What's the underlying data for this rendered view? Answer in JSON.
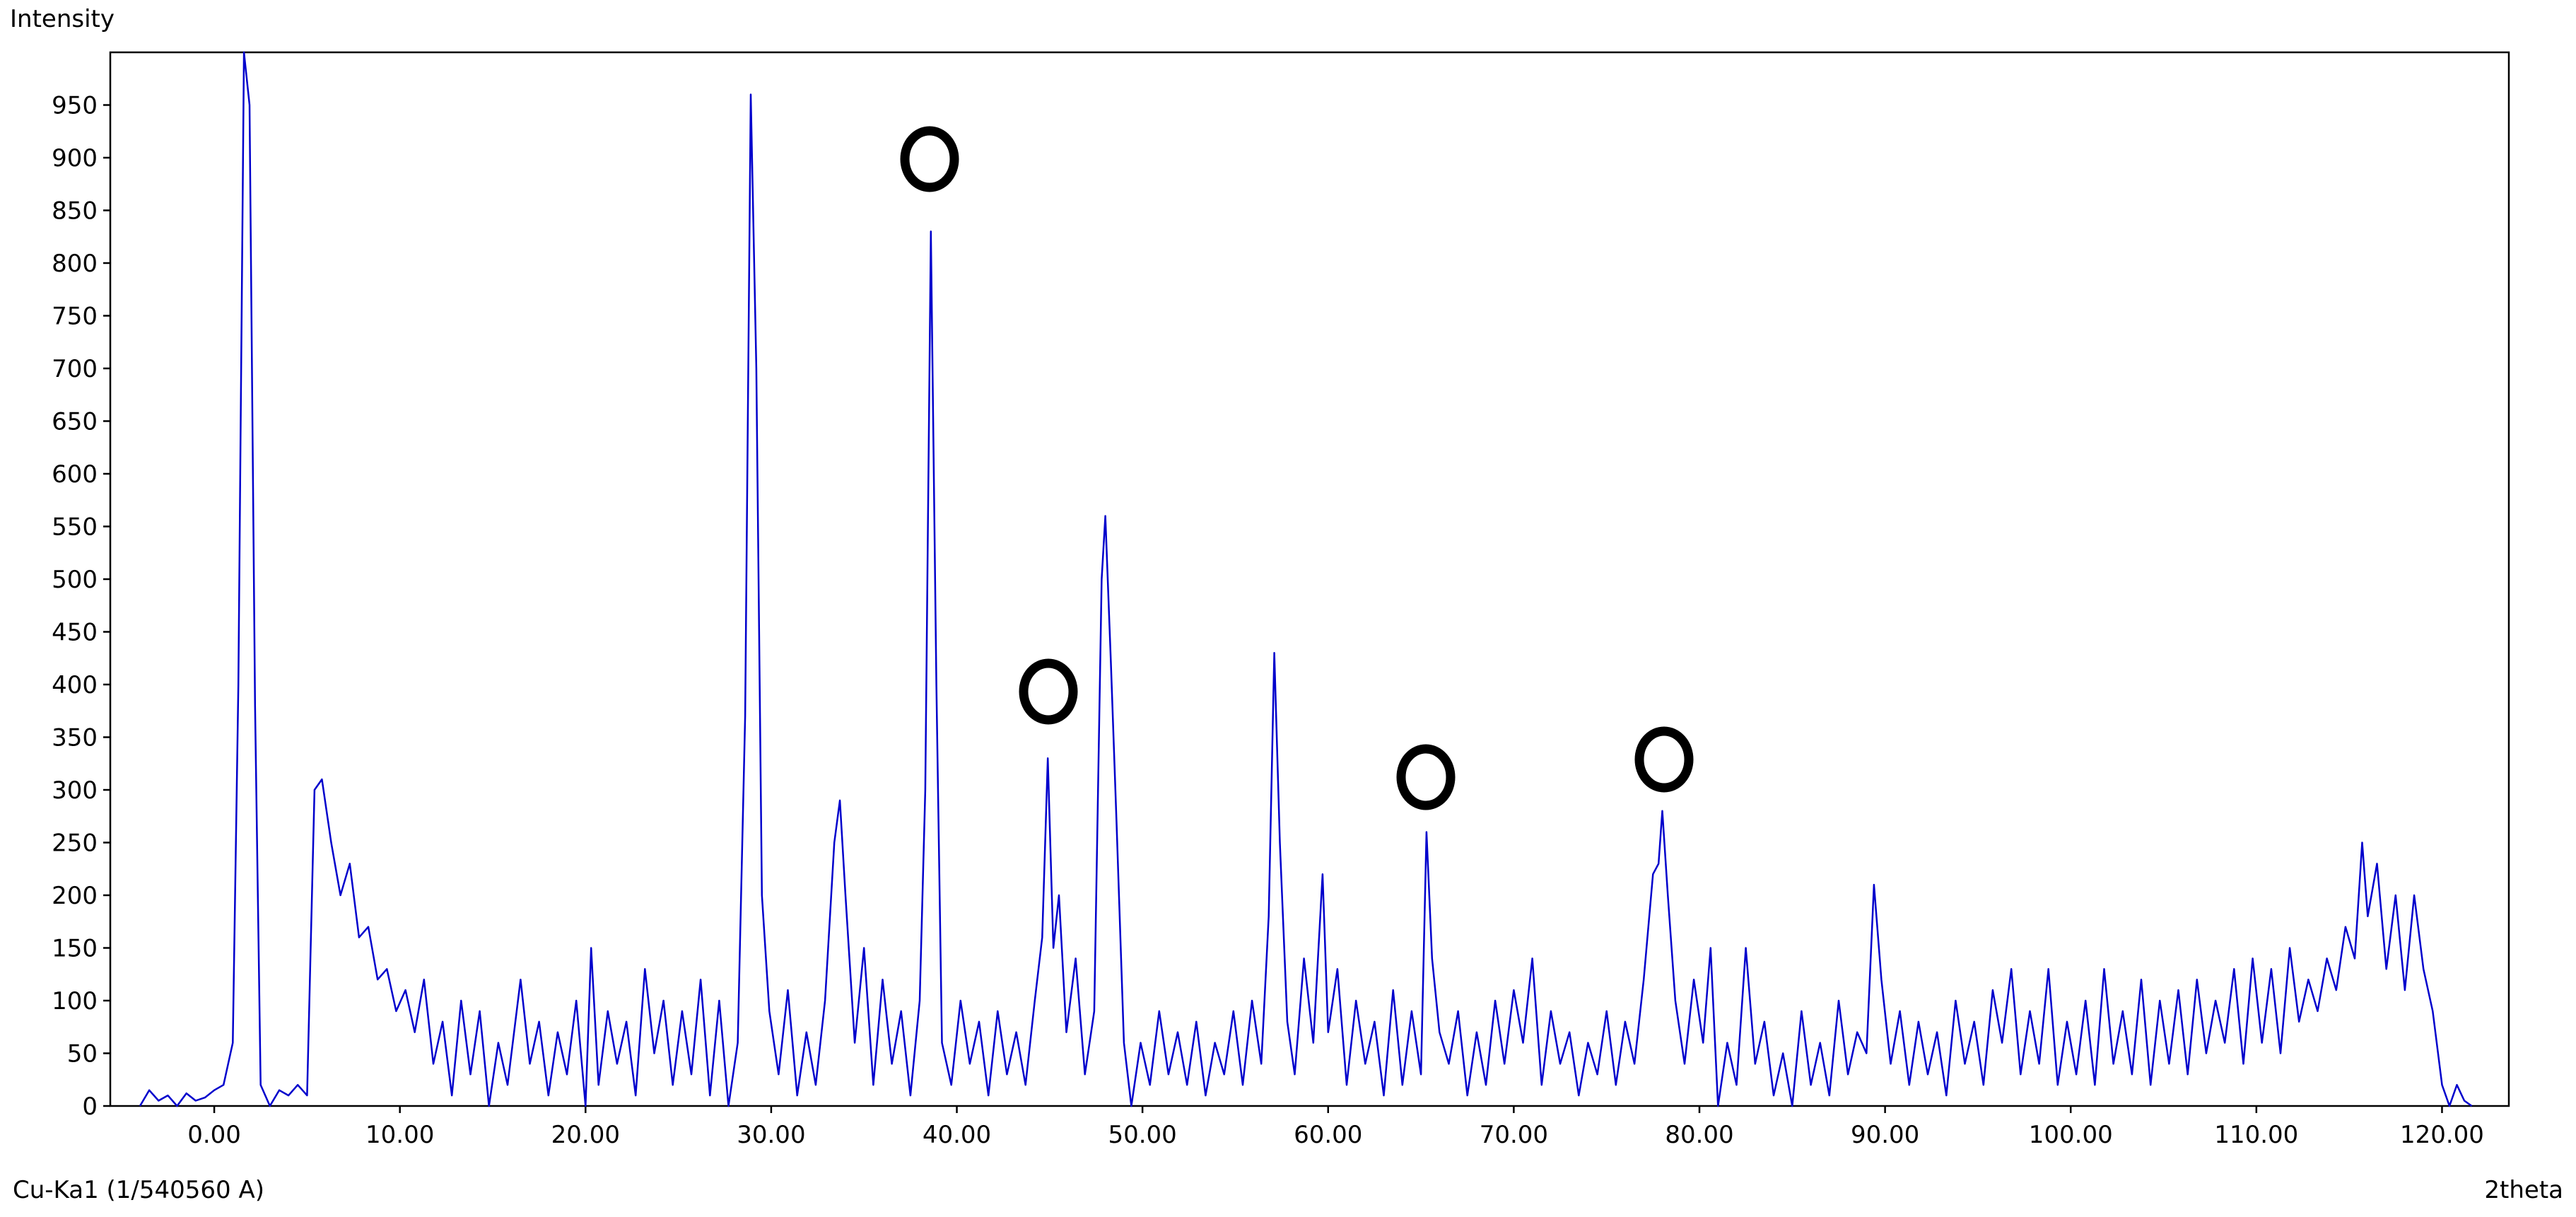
{
  "chart_data": {
    "type": "line",
    "y_label": "Intensity",
    "x_label": "2theta",
    "footnote": "Cu-Ka1 (1/540560 A)",
    "xlim": [
      -5.6,
      123.6
    ],
    "ylim": [
      0,
      1000
    ],
    "xticks": [
      {
        "value": 0,
        "label": "0.00"
      },
      {
        "value": 10,
        "label": "10.00"
      },
      {
        "value": 20,
        "label": "20.00"
      },
      {
        "value": 30,
        "label": "30.00"
      },
      {
        "value": 40,
        "label": "40.00"
      },
      {
        "value": 50,
        "label": "50.00"
      },
      {
        "value": 60,
        "label": "60.00"
      },
      {
        "value": 70,
        "label": "70.00"
      },
      {
        "value": 80,
        "label": "80.00"
      },
      {
        "value": 90,
        "label": "90.00"
      },
      {
        "value": 100,
        "label": "100.00"
      },
      {
        "value": 110,
        "label": "110.00"
      },
      {
        "value": 120,
        "label": "120.00"
      }
    ],
    "yticks": [
      0,
      50,
      100,
      150,
      200,
      250,
      300,
      350,
      400,
      450,
      500,
      550,
      600,
      650,
      700,
      750,
      800,
      850,
      900,
      950
    ],
    "grid": false,
    "series": [
      {
        "color": "#0000cc",
        "x": [
          -4,
          -3.5,
          -3,
          -2.5,
          -2,
          -1.5,
          -1,
          -0.5,
          0,
          0.5,
          1,
          1.3,
          1.6,
          1.9,
          2.2,
          2.5,
          3,
          3.5,
          4,
          4.5,
          5,
          5.4,
          5.8,
          6.3,
          6.8,
          7.3,
          7.8,
          8.3,
          8.8,
          9.3,
          9.8,
          10.3,
          10.8,
          11.3,
          11.8,
          12.3,
          12.8,
          13.3,
          13.8,
          14.3,
          14.8,
          15.3,
          15.8,
          16.5,
          17,
          17.5,
          18,
          18.5,
          19,
          19.5,
          20,
          20.3,
          20.7,
          21.2,
          21.7,
          22.2,
          22.7,
          23.2,
          23.7,
          24.2,
          24.7,
          25.2,
          25.7,
          26.2,
          26.7,
          27.2,
          27.7,
          28.2,
          28.6,
          28.9,
          29.2,
          29.5,
          29.9,
          30.4,
          30.9,
          31.4,
          31.9,
          32.4,
          32.9,
          33.4,
          33.7,
          34,
          34.5,
          35,
          35.5,
          36,
          36.5,
          37,
          37.5,
          38,
          38.3,
          38.6,
          38.9,
          39.2,
          39.7,
          40.2,
          40.7,
          41.2,
          41.7,
          42.2,
          42.7,
          43.2,
          43.7,
          44.2,
          44.6,
          44.9,
          45.2,
          45.5,
          45.9,
          46.4,
          46.9,
          47.4,
          47.8,
          48,
          48.3,
          48.6,
          49,
          49.4,
          49.9,
          50.4,
          50.9,
          51.4,
          51.9,
          52.4,
          52.9,
          53.4,
          53.9,
          54.4,
          54.9,
          55.4,
          55.9,
          56.4,
          56.8,
          57.1,
          57.4,
          57.8,
          58.2,
          58.7,
          59.2,
          59.7,
          60,
          60.5,
          61,
          61.5,
          62,
          62.5,
          63,
          63.5,
          64,
          64.5,
          65,
          65.3,
          65.6,
          66,
          66.5,
          67,
          67.5,
          68,
          68.5,
          69,
          69.5,
          70,
          70.5,
          71,
          71.5,
          72,
          72.5,
          73,
          73.5,
          74,
          74.5,
          75,
          75.5,
          76,
          76.5,
          77,
          77.5,
          77.8,
          78,
          78.3,
          78.7,
          79.2,
          79.7,
          80.2,
          80.6,
          81,
          81.5,
          82,
          82.5,
          83,
          83.5,
          84,
          84.5,
          85,
          85.5,
          86,
          86.5,
          87,
          87.5,
          88,
          88.5,
          89,
          89.4,
          89.8,
          90.3,
          90.8,
          91.3,
          91.8,
          92.3,
          92.8,
          93.3,
          93.8,
          94.3,
          94.8,
          95.3,
          95.8,
          96.3,
          96.8,
          97.3,
          97.8,
          98.3,
          98.8,
          99.3,
          99.8,
          100.3,
          100.8,
          101.3,
          101.8,
          102.3,
          102.8,
          103.3,
          103.8,
          104.3,
          104.8,
          105.3,
          105.8,
          106.3,
          106.8,
          107.3,
          107.8,
          108.3,
          108.8,
          109.3,
          109.8,
          110.3,
          110.8,
          111.3,
          111.8,
          112.3,
          112.8,
          113.3,
          113.8,
          114.3,
          114.8,
          115.3,
          115.7,
          116,
          116.5,
          117,
          117.5,
          118,
          118.5,
          119,
          119.5,
          120,
          120.4,
          120.8,
          121.2,
          121.6
        ],
        "values": [
          0,
          15,
          5,
          10,
          0,
          12,
          5,
          8,
          15,
          20,
          60,
          400,
          1000,
          950,
          380,
          20,
          0,
          15,
          10,
          20,
          10,
          300,
          310,
          250,
          200,
          230,
          160,
          170,
          120,
          130,
          90,
          110,
          70,
          120,
          40,
          80,
          10,
          100,
          30,
          90,
          0,
          60,
          20,
          120,
          40,
          80,
          10,
          70,
          30,
          100,
          0,
          150,
          20,
          90,
          40,
          80,
          10,
          130,
          50,
          100,
          20,
          90,
          30,
          120,
          10,
          100,
          0,
          60,
          370,
          960,
          700,
          200,
          90,
          30,
          110,
          10,
          70,
          20,
          100,
          250,
          290,
          200,
          60,
          150,
          20,
          120,
          40,
          90,
          10,
          100,
          300,
          830,
          400,
          60,
          20,
          100,
          40,
          80,
          10,
          90,
          30,
          70,
          20,
          100,
          160,
          330,
          150,
          200,
          70,
          140,
          30,
          90,
          500,
          560,
          420,
          270,
          60,
          0,
          60,
          20,
          90,
          30,
          70,
          20,
          80,
          10,
          60,
          30,
          90,
          20,
          100,
          40,
          180,
          430,
          250,
          80,
          30,
          140,
          60,
          220,
          70,
          130,
          20,
          100,
          40,
          80,
          10,
          110,
          20,
          90,
          30,
          260,
          140,
          70,
          40,
          90,
          10,
          70,
          20,
          100,
          40,
          110,
          60,
          140,
          20,
          90,
          40,
          70,
          10,
          60,
          30,
          90,
          20,
          80,
          40,
          120,
          220,
          230,
          280,
          200,
          100,
          40,
          120,
          60,
          150,
          0,
          60,
          20,
          150,
          40,
          80,
          10,
          50,
          0,
          90,
          20,
          60,
          10,
          100,
          30,
          70,
          50,
          210,
          120,
          40,
          90,
          20,
          80,
          30,
          70,
          10,
          100,
          40,
          80,
          20,
          110,
          60,
          130,
          30,
          90,
          40,
          130,
          20,
          80,
          30,
          100,
          20,
          130,
          40,
          90,
          30,
          120,
          20,
          100,
          40,
          110,
          30,
          120,
          50,
          100,
          60,
          130,
          40,
          140,
          60,
          130,
          50,
          150,
          80,
          120,
          90,
          140,
          110,
          170,
          140,
          250,
          180,
          230,
          130,
          200,
          110,
          200,
          130,
          90,
          20,
          0,
          20,
          5,
          0
        ]
      }
    ]
  }
}
